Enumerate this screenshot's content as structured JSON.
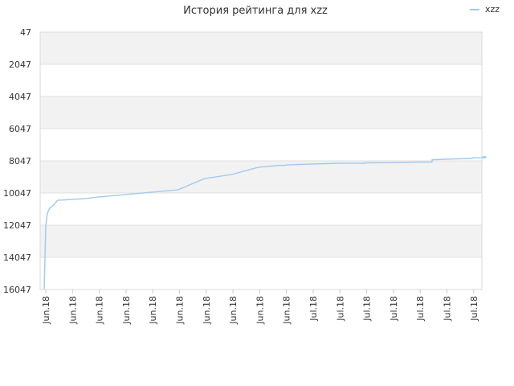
{
  "chart_data": {
    "type": "line",
    "title": "История рейтинга для xzz",
    "xlabel": "",
    "ylabel": "",
    "y_inverted": true,
    "ylim": [
      16047,
      47
    ],
    "yticks": [
      47,
      2047,
      4047,
      6047,
      8047,
      10047,
      12047,
      14047,
      16047
    ],
    "xticks": [
      "Jun.18",
      "Jun.18",
      "Jun.18",
      "Jun.18",
      "Jun.18",
      "Jun.18",
      "Jun.18",
      "Jun.18",
      "Jun.18",
      "Jun.18",
      "Jul.18",
      "Jul.18",
      "Jul.18",
      "Jul.18",
      "Jul.18",
      "Jul.18",
      "Jul.18"
    ],
    "legend": {
      "position": "top-right"
    },
    "grid": true,
    "band_colors": [
      "#f2f2f2",
      "#ffffff"
    ],
    "series": [
      {
        "name": "xzz",
        "color": "#a3cbee",
        "x": [
          0,
          0.06,
          0.12,
          0.2,
          0.35,
          0.5,
          0.8,
          1.0,
          1.5,
          2.0,
          3.0,
          4.0,
          5.0,
          6.0,
          7.0,
          8.0,
          8.5,
          8.8,
          9.0,
          9.05,
          9.5,
          10.0,
          11.0,
          12.0,
          12.01,
          13.0,
          14.0,
          14.5,
          14.51,
          15.0,
          16.0,
          16.01,
          16.5,
          16.51
        ],
        "y": [
          16047,
          12047,
          11300,
          11000,
          10800,
          10500,
          10470,
          10450,
          10400,
          10300,
          10150,
          10000,
          9850,
          9150,
          8900,
          8450,
          8370,
          8330,
          8330,
          8300,
          8270,
          8250,
          8200,
          8200,
          8170,
          8160,
          8120,
          8120,
          7980,
          7950,
          7900,
          7860,
          7860,
          7800
        ]
      }
    ]
  }
}
